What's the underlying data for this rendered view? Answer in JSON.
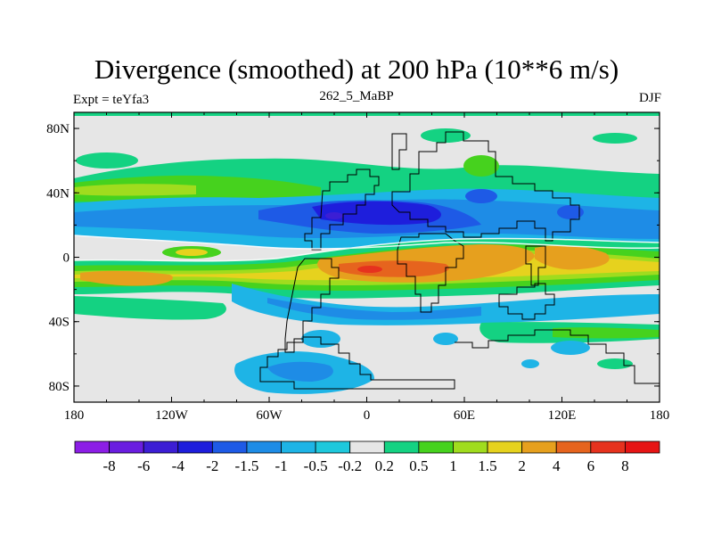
{
  "chart_data": {
    "type": "heatmap",
    "title": "Divergence (smoothed) at 200 hPa (10**6 m/s)",
    "left_string": "Expt = teYfa3",
    "center_string": "262_5_MaBP",
    "right_string": "DJF",
    "x_tick_labels": [
      "180",
      "120W",
      "60W",
      "0",
      "60E",
      "120E",
      "180"
    ],
    "y_tick_labels": [
      "80N",
      "40N",
      "0",
      "40S",
      "80S"
    ],
    "colorbar": {
      "levels": [
        "-8",
        "-6",
        "-4",
        "-2",
        "-1.5",
        "-1",
        "-0.5",
        "-0.2",
        "0.2",
        "0.5",
        "1",
        "1.5",
        "2",
        "4",
        "6",
        "8"
      ],
      "colors": [
        "#8c1ee6",
        "#6a1ee0",
        "#3c1ed4",
        "#1e1edc",
        "#1e5ae6",
        "#1e8ce6",
        "#1eb4e6",
        "#1ec8dc",
        "#e6e6e6",
        "#14d282",
        "#46d21e",
        "#a0dc1e",
        "#e6d21e",
        "#e6a01e",
        "#e6641e",
        "#e6321e",
        "#e61414"
      ]
    },
    "field_description": "Mostly near zero (gray) field with a blue/negative (convergent) band in northern subtropics, orange/red positive (divergent) band across tropics and southern subtropics, green bands in midlatitudes"
  },
  "colors": {
    "background": "#ffffff",
    "near_zero": "#e6e6e6",
    "coastline": "#000000"
  }
}
